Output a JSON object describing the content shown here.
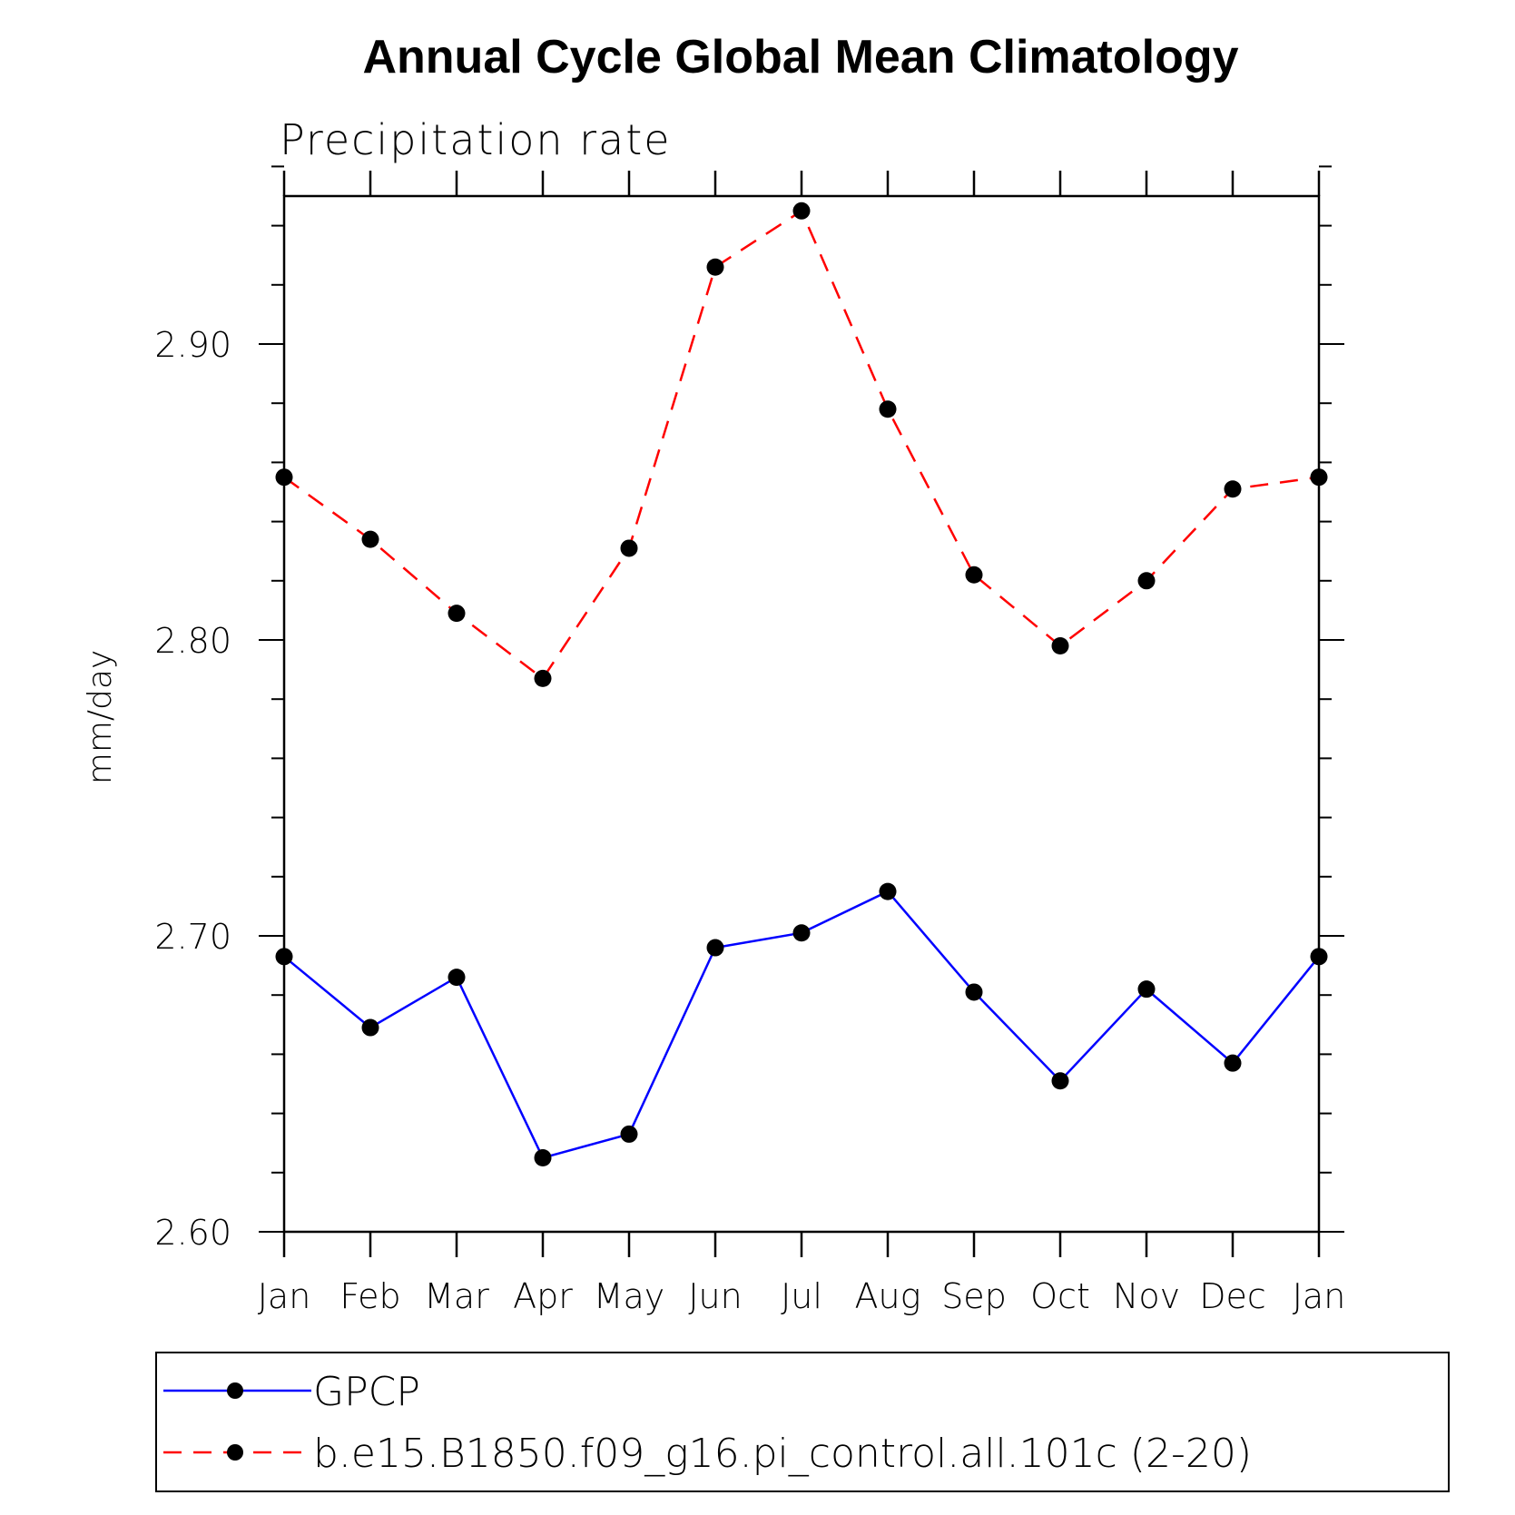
{
  "chart_data": {
    "type": "line",
    "title": "Annual Cycle Global Mean Climatology",
    "subtitle": "Precipitation rate",
    "xlabel": "",
    "ylabel": "mm/day",
    "categories": [
      "Jan",
      "Feb",
      "Mar",
      "Apr",
      "May",
      "Jun",
      "Jul",
      "Aug",
      "Sep",
      "Oct",
      "Nov",
      "Dec",
      "Jan"
    ],
    "ylim": [
      2.6,
      2.95
    ],
    "yticks": [
      2.6,
      2.7,
      2.8,
      2.9
    ],
    "ytick_labels": [
      "2.60",
      "2.70",
      "2.80",
      "2.90"
    ],
    "y_minor_step": 0.02,
    "grid": false,
    "legend_position": "bottom",
    "series": [
      {
        "name": "GPCP",
        "color": "#0000ff",
        "style": "solid",
        "values": [
          2.693,
          2.669,
          2.686,
          2.625,
          2.633,
          2.696,
          2.701,
          2.715,
          2.681,
          2.651,
          2.682,
          2.657,
          2.693
        ]
      },
      {
        "name": "b.e15.B1850.f09_g16.pi_control.all.101c (2-20)",
        "color": "#ff0000",
        "style": "dashed",
        "values": [
          2.855,
          2.834,
          2.809,
          2.787,
          2.831,
          2.926,
          2.945,
          2.878,
          2.822,
          2.798,
          2.82,
          2.851,
          2.855
        ]
      }
    ]
  }
}
